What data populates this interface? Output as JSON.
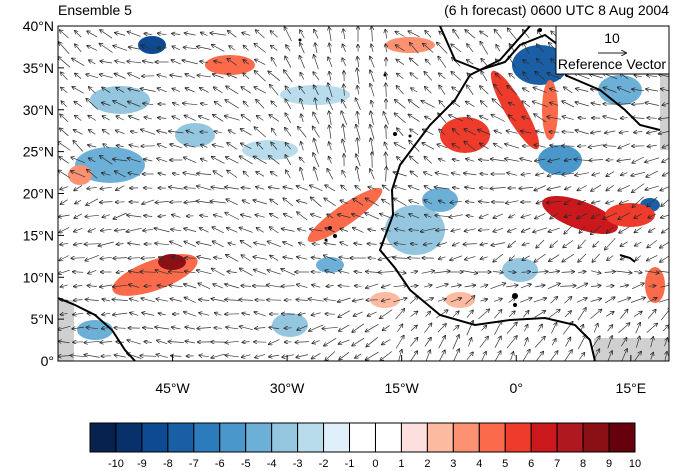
{
  "header": {
    "left_title": "Ensemble 5",
    "right_title": "(6 h forecast) 0600 UTC 8 Aug 2004"
  },
  "map": {
    "lat_ticks": [
      "40°N",
      "35°N",
      "30°N",
      "25°N",
      "20°N",
      "15°N",
      "10°N",
      "5°N",
      "0°"
    ],
    "lon_ticks": [
      "45°W",
      "30°W",
      "15°W",
      "0°",
      "15°E"
    ],
    "lon_range": [
      -60,
      20
    ],
    "lat_range": [
      0,
      40
    ],
    "reference_vector": {
      "value": "10",
      "label": "Reference Vector"
    }
  },
  "colorbar": {
    "labels": [
      "-10",
      "-9",
      "-8",
      "-7",
      "-6",
      "-5",
      "-4",
      "-3",
      "-2",
      "-1",
      "0",
      "1",
      "2",
      "3",
      "4",
      "5",
      "6",
      "7",
      "8",
      "9",
      "10"
    ],
    "colors": [
      "#08224f",
      "#08306b",
      "#0d4a92",
      "#1a5fa6",
      "#2c7bbd",
      "#4a98cb",
      "#6db0d7",
      "#94c6e0",
      "#b8dcec",
      "#dff0fa",
      "#ffffff",
      "#ffffff",
      "#fde0dd",
      "#fcbba1",
      "#fc9272",
      "#fb6a4a",
      "#ef3b2c",
      "#cb181d",
      "#b01820",
      "#8a1016",
      "#67000d"
    ]
  },
  "colors": {
    "land_outline": "#000000",
    "missing_fill": "#d0d0d0"
  }
}
